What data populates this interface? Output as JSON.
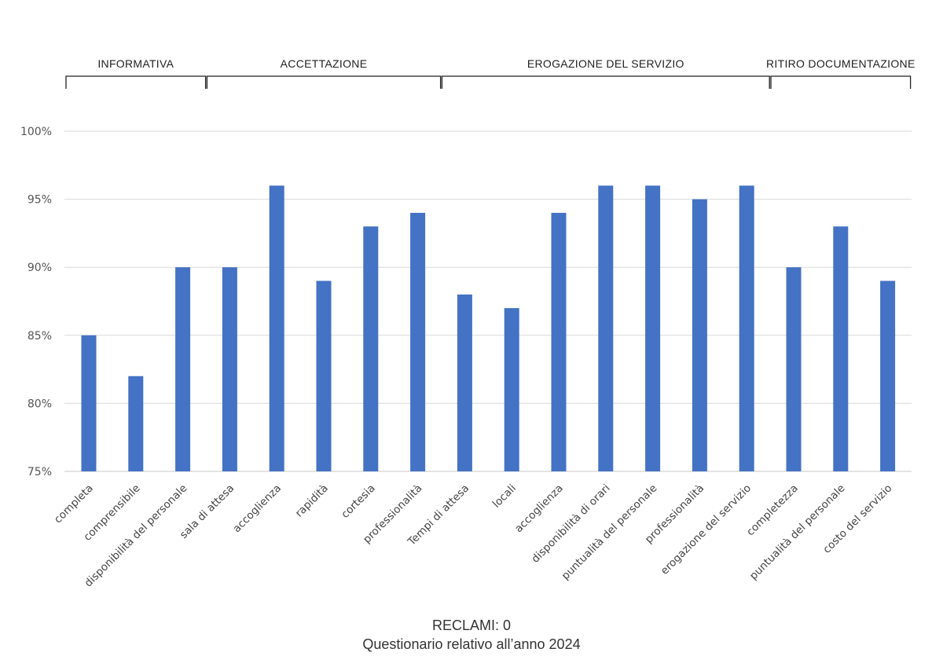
{
  "chart_data": {
    "type": "bar",
    "categories": [
      "completa",
      "comprensibile",
      "disponibilità del personale",
      "sala di attesa",
      "accoglienza",
      "rapidità",
      "cortesia",
      "professionalità",
      "Tempi di attesa",
      "locali",
      "accoglienza",
      "disponibilità di orari",
      "puntualità del personale",
      "professionalità",
      "erogazione del servizio",
      "completezza",
      "puntualità del personale",
      "costo del servizio"
    ],
    "values": [
      85,
      82,
      90,
      90,
      96,
      89,
      93,
      94,
      88,
      87,
      94,
      96,
      96,
      95,
      96,
      90,
      93,
      89
    ],
    "ylim": [
      75,
      100
    ],
    "yticks": [
      75,
      80,
      85,
      90,
      95,
      100
    ],
    "ytick_labels": [
      "75%",
      "80%",
      "85%",
      "90%",
      "95%",
      "100%"
    ],
    "groups": [
      {
        "label": "INFORMATIVA",
        "start": 0,
        "end": 2
      },
      {
        "label": "ACCETTAZIONE",
        "start": 3,
        "end": 7
      },
      {
        "label": "EROGAZIONE DEL SERVIZIO",
        "start": 8,
        "end": 14
      },
      {
        "label": "RITIRO DOCUMENTAZIONE",
        "start": 15,
        "end": 17
      }
    ],
    "bar_color": "#4472C4",
    "grid": true,
    "legend": "none"
  },
  "footer": {
    "line1": "RECLAMI: 0",
    "line2": "Questionario relativo all’anno 2024"
  }
}
